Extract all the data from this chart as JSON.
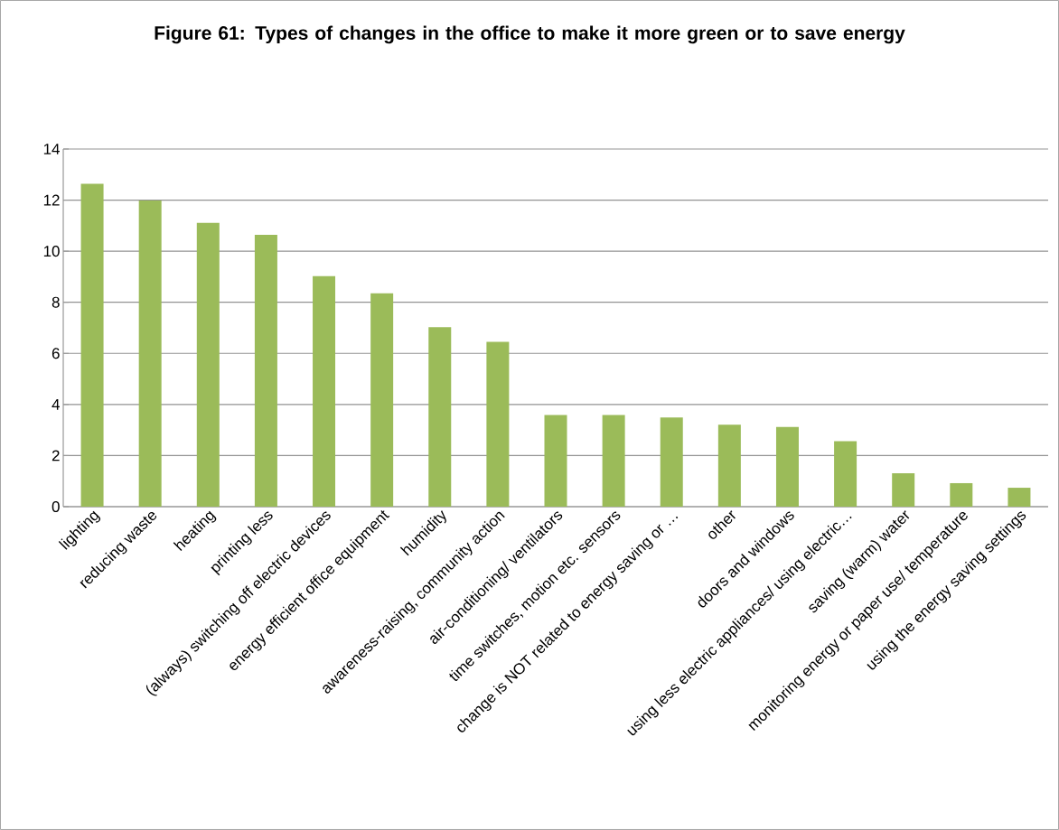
{
  "chart_data": {
    "type": "bar",
    "title": "Figure 61: Types of changes in the office to make it more green or to save energy",
    "categories": [
      "lighting",
      "reducing waste",
      "heating",
      "printing less",
      "(always) switching off electric devices",
      "energy efficient office equipment",
      "humidity",
      "awareness-raising, community action",
      "air-conditioning/ ventilators",
      "time switches, motion etc. sensors",
      "change is NOT related to energy saving or …",
      "other",
      "doors and windows",
      "using less electric appliances/ using electric…",
      "saving (warm) water",
      "monitoring energy or paper use/ temperature",
      "using the energy saving settings"
    ],
    "values": [
      12.64,
      11.98,
      11.11,
      10.64,
      9.02,
      8.35,
      7.03,
      6.45,
      3.59,
      3.59,
      3.49,
      3.21,
      3.12,
      2.56,
      1.31,
      0.92,
      0.74
    ],
    "color": "#9bbb59",
    "ylim": [
      0,
      14
    ],
    "yticks": [
      0,
      2,
      4,
      6,
      8,
      10,
      12,
      14
    ],
    "grid": "y"
  }
}
